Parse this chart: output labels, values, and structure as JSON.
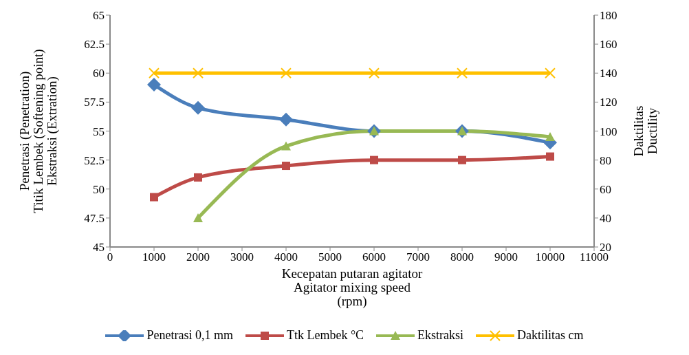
{
  "chart_data": {
    "type": "line",
    "xlabel": "Kecepatan putaran agitator\nAgitator mixing speed\n(rpm)",
    "ylabel": "Penetrasi (Penetration)\nTitik Lembek (Softening point)\nEkstraksi (Extration)",
    "y2label": "Daktilitas\nDuctility",
    "x": [
      1000,
      2000,
      4000,
      6000,
      8000,
      10000
    ],
    "series": [
      {
        "name": "Penetrasi 0,1 mm",
        "color": "#4a7ebb",
        "marker": "diamond",
        "values": [
          59,
          57,
          56,
          55,
          55,
          54
        ]
      },
      {
        "name": "Ttk Lembek °C",
        "color": "#be4b48",
        "marker": "square",
        "values": [
          49.3,
          51,
          52,
          52.5,
          52.5,
          52.8
        ]
      },
      {
        "name": "Ekstraksi",
        "color": "#98b954",
        "marker": "triangle",
        "values": [
          null,
          47.5,
          53.7,
          55,
          55,
          54.5
        ]
      },
      {
        "name": "Daktilitas cm",
        "color": "#ffc000",
        "marker": "cross",
        "axis": "y2",
        "values": [
          140,
          140,
          140,
          140,
          140,
          140
        ]
      }
    ],
    "xlim": [
      0,
      11000
    ],
    "xticks": [
      0,
      1000,
      2000,
      3000,
      4000,
      5000,
      6000,
      7000,
      8000,
      9000,
      10000,
      11000
    ],
    "ylim": [
      45,
      65
    ],
    "yticks": [
      45,
      47.5,
      50,
      52.5,
      55,
      57.5,
      60,
      62.5,
      65
    ],
    "y2lim": [
      20,
      180
    ],
    "y2ticks": [
      20,
      40,
      60,
      80,
      100,
      120,
      140,
      160,
      180
    ],
    "grid": false,
    "legend": "bottom",
    "line_style": "solid"
  }
}
